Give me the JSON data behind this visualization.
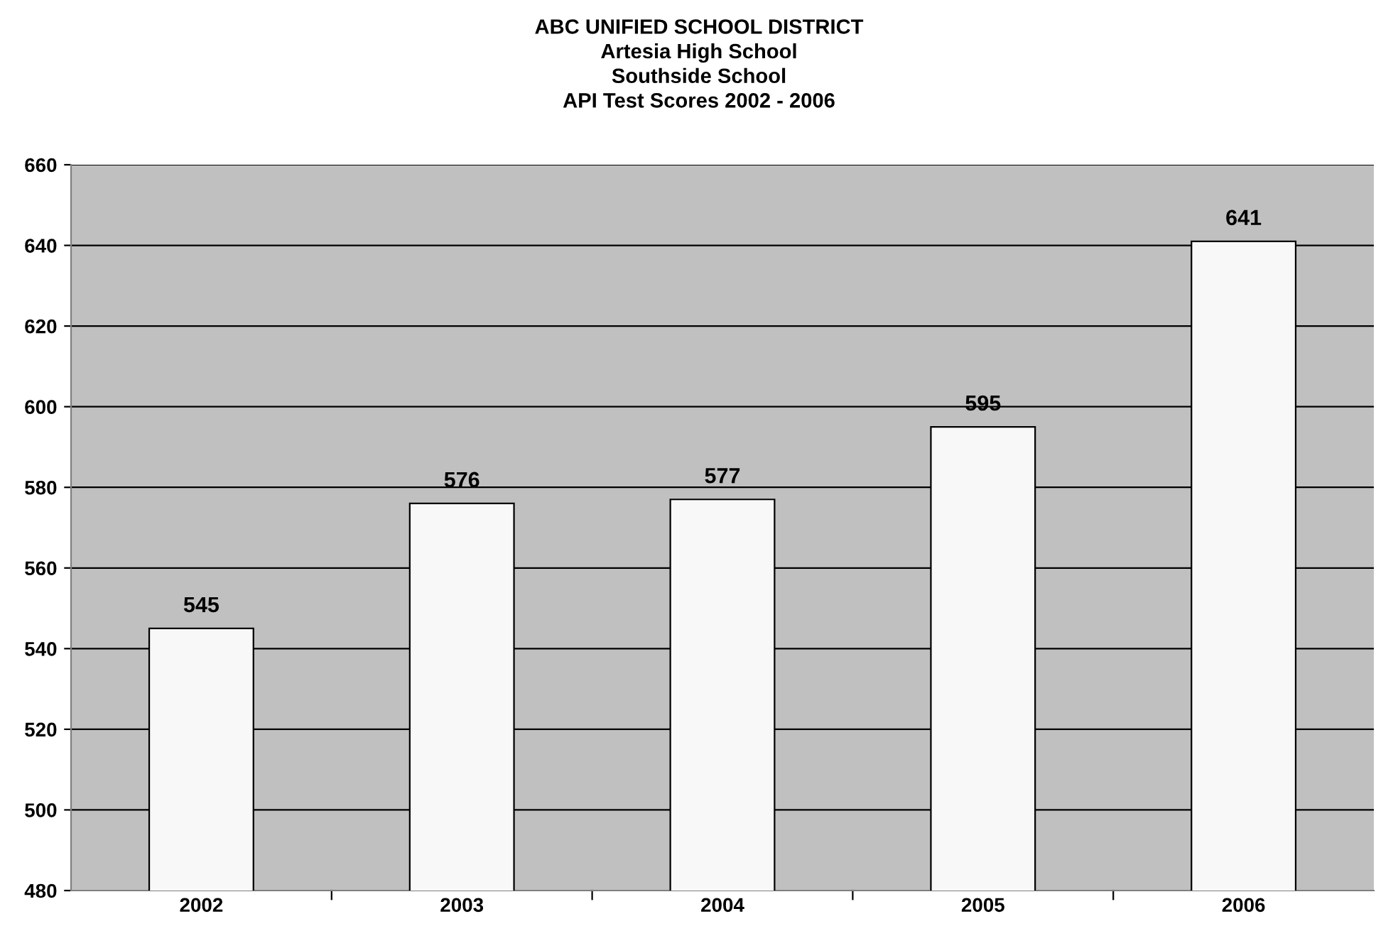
{
  "chart_data": {
    "type": "bar",
    "title": "ABC UNIFIED SCHOOL DISTRICT\nArtesia High School\nSouthside School\nAPI Test Scores 2002 - 2006",
    "categories": [
      "2002",
      "2003",
      "2004",
      "2005",
      "2006"
    ],
    "values": [
      545,
      576,
      577,
      595,
      641
    ],
    "color": "#f8f8f8",
    "ylim": [
      480,
      660
    ],
    "yticks": [
      480,
      500,
      520,
      540,
      560,
      580,
      600,
      620,
      640,
      660
    ],
    "grid": "y",
    "data_labels": true
  }
}
